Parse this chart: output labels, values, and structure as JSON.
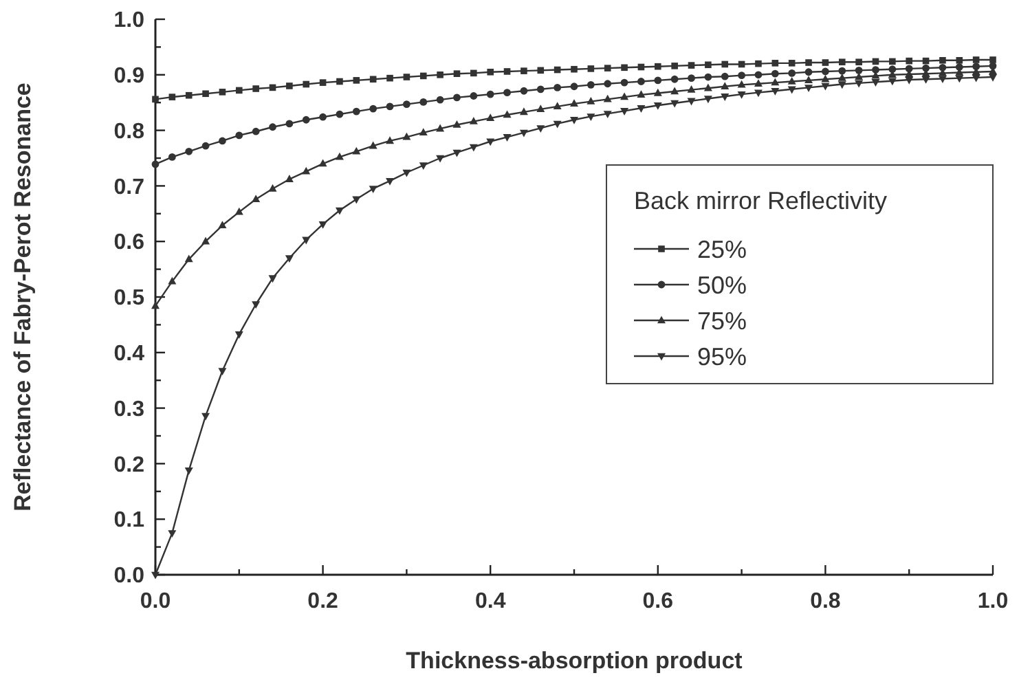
{
  "chart_data": {
    "type": "line",
    "xlabel": "Thickness-absorption product",
    "ylabel": "Reflectance of Fabry-Perot Resonance",
    "legend_title": "Back mirror Reflectivity",
    "legend": "right",
    "grid": false,
    "line_style": "solid",
    "xlim": [
      0,
      1
    ],
    "ylim": [
      0,
      1
    ],
    "xticks": [
      {
        "value": 0,
        "label": "0.0"
      },
      {
        "value": 0.1,
        "label": null
      },
      {
        "value": 0.2,
        "label": "0.2"
      },
      {
        "value": 0.3,
        "label": null
      },
      {
        "value": 0.4,
        "label": "0.4"
      },
      {
        "value": 0.5,
        "label": null
      },
      {
        "value": 0.6,
        "label": "0.6"
      },
      {
        "value": 0.7,
        "label": null
      },
      {
        "value": 0.8,
        "label": "0.8"
      },
      {
        "value": 0.9,
        "label": null
      },
      {
        "value": 1,
        "label": "1.0"
      }
    ],
    "yticks": [
      {
        "value": 0,
        "label": "0.0"
      },
      {
        "value": 0.05,
        "label": null
      },
      {
        "value": 0.1,
        "label": "0.1"
      },
      {
        "value": 0.15,
        "label": null
      },
      {
        "value": 0.2,
        "label": "0.2"
      },
      {
        "value": 0.25,
        "label": null
      },
      {
        "value": 0.3,
        "label": "0.3"
      },
      {
        "value": 0.35,
        "label": null
      },
      {
        "value": 0.4,
        "label": "0.4"
      },
      {
        "value": 0.45,
        "label": null
      },
      {
        "value": 0.5,
        "label": "0.5"
      },
      {
        "value": 0.55,
        "label": null
      },
      {
        "value": 0.6,
        "label": "0.6"
      },
      {
        "value": 0.65,
        "label": null
      },
      {
        "value": 0.7,
        "label": "0.7"
      },
      {
        "value": 0.75,
        "label": null
      },
      {
        "value": 0.8,
        "label": "0.8"
      },
      {
        "value": 0.85,
        "label": null
      },
      {
        "value": 0.9,
        "label": "0.9"
      },
      {
        "value": 0.95,
        "label": null
      },
      {
        "value": 1,
        "label": "1.0"
      }
    ],
    "x": [
      0,
      0.02,
      0.04,
      0.06,
      0.08,
      0.1,
      0.12,
      0.14,
      0.16,
      0.18,
      0.2,
      0.22,
      0.24,
      0.26,
      0.28,
      0.3,
      0.32,
      0.34,
      0.36,
      0.38,
      0.4,
      0.42,
      0.44,
      0.46,
      0.48,
      0.5,
      0.52,
      0.54,
      0.56,
      0.58,
      0.6,
      0.62,
      0.64,
      0.66,
      0.68,
      0.7,
      0.72,
      0.74,
      0.76,
      0.78,
      0.8,
      0.82,
      0.84,
      0.86,
      0.88,
      0.9,
      0.92,
      0.94,
      0.96,
      0.98,
      1
    ],
    "series": [
      {
        "name": "25%",
        "color": "#333333",
        "marker": "square",
        "values": [
          0.856,
          0.86,
          0.863,
          0.866,
          0.869,
          0.872,
          0.875,
          0.877,
          0.88,
          0.883,
          0.886,
          0.888,
          0.89,
          0.892,
          0.894,
          0.896,
          0.898,
          0.9,
          0.902,
          0.903,
          0.905,
          0.906,
          0.907,
          0.908,
          0.909,
          0.91,
          0.911,
          0.912,
          0.913,
          0.914,
          0.915,
          0.916,
          0.917,
          0.918,
          0.919,
          0.919,
          0.92,
          0.921,
          0.921,
          0.922,
          0.922,
          0.923,
          0.923,
          0.924,
          0.924,
          0.925,
          0.925,
          0.926,
          0.926,
          0.927,
          0.927
        ]
      },
      {
        "name": "50%",
        "color": "#333333",
        "marker": "circle",
        "values": [
          0.739,
          0.752,
          0.762,
          0.772,
          0.781,
          0.791,
          0.798,
          0.806,
          0.812,
          0.819,
          0.824,
          0.829,
          0.834,
          0.839,
          0.843,
          0.847,
          0.851,
          0.855,
          0.859,
          0.862,
          0.865,
          0.868,
          0.871,
          0.874,
          0.877,
          0.879,
          0.882,
          0.884,
          0.886,
          0.888,
          0.89,
          0.892,
          0.894,
          0.896,
          0.897,
          0.899,
          0.9,
          0.902,
          0.903,
          0.905,
          0.906,
          0.907,
          0.908,
          0.909,
          0.91,
          0.911,
          0.912,
          0.913,
          0.914,
          0.915,
          0.916
        ]
      },
      {
        "name": "75%",
        "color": "#333333",
        "marker": "triangle",
        "values": [
          0.484,
          0.528,
          0.568,
          0.6,
          0.629,
          0.653,
          0.676,
          0.695,
          0.712,
          0.726,
          0.74,
          0.752,
          0.762,
          0.772,
          0.781,
          0.788,
          0.796,
          0.803,
          0.81,
          0.816,
          0.822,
          0.828,
          0.833,
          0.838,
          0.843,
          0.848,
          0.852,
          0.856,
          0.86,
          0.864,
          0.867,
          0.87,
          0.873,
          0.876,
          0.879,
          0.882,
          0.884,
          0.886,
          0.888,
          0.89,
          0.892,
          0.894,
          0.896,
          0.898,
          0.9,
          0.901,
          0.902,
          0.903,
          0.904,
          0.905,
          0.906
        ]
      },
      {
        "name": "95%",
        "color": "#333333",
        "marker": "triangle-down",
        "values": [
          0,
          0.075,
          0.188,
          0.286,
          0.367,
          0.433,
          0.487,
          0.534,
          0.57,
          0.603,
          0.631,
          0.656,
          0.676,
          0.695,
          0.709,
          0.724,
          0.737,
          0.75,
          0.76,
          0.77,
          0.78,
          0.788,
          0.796,
          0.804,
          0.812,
          0.819,
          0.825,
          0.83,
          0.835,
          0.84,
          0.845,
          0.849,
          0.853,
          0.857,
          0.861,
          0.865,
          0.868,
          0.871,
          0.874,
          0.877,
          0.88,
          0.883,
          0.885,
          0.887,
          0.889,
          0.891,
          0.892,
          0.893,
          0.894,
          0.895,
          0.896
        ]
      }
    ]
  }
}
